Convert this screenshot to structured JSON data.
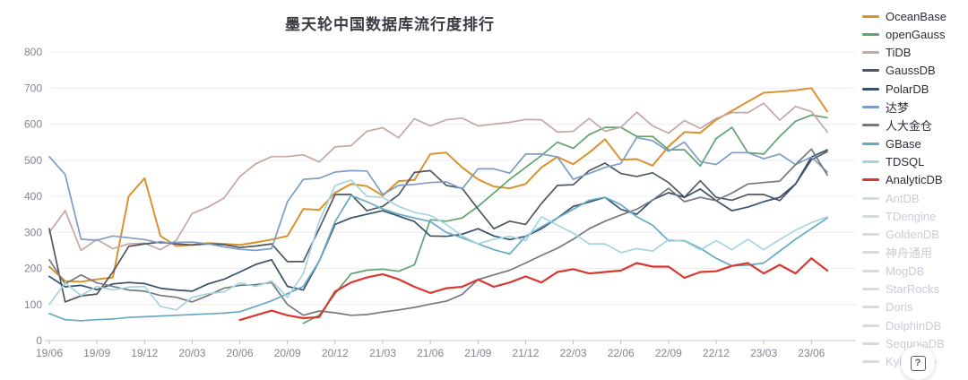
{
  "title": "墨天轮中国数据库流行度排行",
  "help_button": {
    "glyph": "?"
  },
  "palette": {
    "grid": "#e9eef6",
    "axis_line": "#c7cbd2",
    "tick_mark": "#b9bdc4",
    "tick_text": "#858591",
    "title_text": "#3a3a42",
    "inactive_swatch": "#d6dade",
    "inactive_text": "#c9cdd4"
  },
  "chart_data": {
    "type": "line",
    "title": "墨天轮中国数据库流行度排行",
    "xlabel": "",
    "ylabel": "",
    "ylim": [
      0,
      800
    ],
    "y_ticks": [
      0,
      100,
      200,
      300,
      400,
      500,
      600,
      700,
      800
    ],
    "grid": true,
    "legend_position": "right",
    "x": [
      "19/06",
      "19/07",
      "19/08",
      "19/09",
      "19/10",
      "19/11",
      "19/12",
      "20/01",
      "20/02",
      "20/03",
      "20/04",
      "20/05",
      "20/06",
      "20/07",
      "20/08",
      "20/09",
      "20/10",
      "20/11",
      "20/12",
      "21/01",
      "21/02",
      "21/03",
      "21/04",
      "21/05",
      "21/06",
      "21/07",
      "21/08",
      "21/09",
      "21/10",
      "21/11",
      "21/12",
      "22/01",
      "22/02",
      "22/03",
      "22/04",
      "22/05",
      "22/06",
      "22/07",
      "22/08",
      "22/09",
      "22/10",
      "22/11",
      "22/12",
      "23/01",
      "23/02",
      "23/03",
      "23/04",
      "23/05",
      "23/06",
      "23/07"
    ],
    "x_tick_labels": [
      "19/06",
      "19/09",
      "19/12",
      "20/03",
      "20/06",
      "20/09",
      "20/12",
      "21/03",
      "21/06",
      "21/09",
      "21/12",
      "22/03",
      "22/06",
      "22/09",
      "22/12",
      "23/03",
      "23/06"
    ],
    "series": [
      {
        "name": "OceanBase",
        "color": "#d9922e",
        "values": [
          205,
          165,
          163,
          170,
          175,
          400,
          450,
          290,
          262,
          265,
          270,
          268,
          265,
          272,
          280,
          290,
          365,
          362,
          410,
          434,
          428,
          402,
          442,
          445,
          517,
          521,
          480,
          447,
          427,
          422,
          434,
          480,
          509,
          489,
          521,
          558,
          501,
          503,
          485,
          538,
          578,
          576,
          612,
          637,
          662,
          687,
          690,
          694,
          700,
          635
        ]
      },
      {
        "name": "openGauss",
        "color": "#5fa36f",
        "values": [
          null,
          null,
          null,
          null,
          null,
          null,
          null,
          null,
          null,
          null,
          null,
          null,
          null,
          null,
          null,
          null,
          48,
          70,
          130,
          185,
          195,
          198,
          192,
          210,
          335,
          331,
          340,
          372,
          409,
          447,
          480,
          513,
          550,
          533,
          571,
          591,
          591,
          566,
          566,
          529,
          529,
          484,
          560,
          591,
          521,
          517,
          566,
          608,
          625,
          618
        ]
      },
      {
        "name": "TiDB",
        "color": "#c7a7a1",
        "values": [
          300,
          360,
          250,
          280,
          255,
          268,
          270,
          252,
          278,
          352,
          370,
          395,
          455,
          490,
          510,
          510,
          515,
          495,
          537,
          540,
          580,
          590,
          562,
          615,
          595,
          612,
          617,
          595,
          600,
          605,
          613,
          612,
          578,
          580,
          616,
          580,
          591,
          633,
          595,
          575,
          610,
          588,
          616,
          632,
          632,
          658,
          611,
          649,
          635,
          578
        ]
      },
      {
        "name": "GaussDB",
        "color": "#50575e",
        "values": [
          310,
          107,
          124,
          129,
          190,
          261,
          268,
          273,
          268,
          265,
          268,
          266,
          258,
          262,
          268,
          219,
          219,
          310,
          405,
          405,
          360,
          372,
          404,
          466,
          471,
          430,
          422,
          365,
          310,
          331,
          322,
          380,
          430,
          432,
          471,
          492,
          463,
          455,
          465,
          438,
          397,
          443,
          397,
          389,
          405,
          405,
          388,
          434,
          501,
          524
        ]
      },
      {
        "name": "PolarDB",
        "color": "#37506c",
        "values": [
          178,
          149,
          153,
          141,
          157,
          161,
          158,
          145,
          140,
          137,
          157,
          170,
          190,
          211,
          224,
          150,
          140,
          220,
          322,
          340,
          350,
          360,
          345,
          330,
          290,
          289,
          295,
          310,
          290,
          280,
          289,
          310,
          340,
          372,
          384,
          397,
          364,
          350,
          390,
          410,
          397,
          420,
          388,
          360,
          370,
          385,
          397,
          434,
          509,
          529
        ]
      },
      {
        "name": "达梦",
        "color": "#7e9cc7",
        "values": [
          510,
          460,
          281,
          278,
          290,
          285,
          280,
          270,
          272,
          273,
          268,
          260,
          253,
          250,
          255,
          385,
          447,
          450,
          467,
          471,
          470,
          405,
          430,
          433,
          438,
          440,
          420,
          476,
          476,
          464,
          517,
          517,
          509,
          447,
          463,
          480,
          491,
          563,
          554,
          525,
          550,
          496,
          488,
          521,
          521,
          504,
          517,
          488,
          509,
          467
        ]
      },
      {
        "name": "人大金仓",
        "color": "#75787d",
        "values": [
          224,
          157,
          182,
          160,
          150,
          140,
          137,
          125,
          120,
          107,
          125,
          145,
          153,
          155,
          161,
          100,
          70,
          82,
          77,
          70,
          72,
          79,
          85,
          92,
          101,
          109,
          128,
          169,
          182,
          195,
          215,
          236,
          256,
          281,
          310,
          331,
          348,
          364,
          389,
          422,
          385,
          397,
          388,
          409,
          434,
          438,
          442,
          488,
          531,
          459
        ]
      },
      {
        "name": "GBase",
        "color": "#65aac5",
        "values": [
          75,
          58,
          55,
          58,
          60,
          64,
          66,
          68,
          70,
          72,
          74,
          76,
          80,
          95,
          110,
          130,
          150,
          220,
          330,
          402,
          385,
          365,
          350,
          340,
          330,
          300,
          285,
          268,
          252,
          240,
          289,
          315,
          340,
          364,
          389,
          397,
          377,
          343,
          320,
          277,
          277,
          256,
          228,
          207,
          209,
          215,
          248,
          281,
          310,
          340
        ]
      },
      {
        "name": "TDSQL",
        "color": "#a6d4de",
        "values": [
          100,
          160,
          125,
          150,
          140,
          148,
          150,
          95,
          85,
          120,
          130,
          135,
          160,
          150,
          165,
          120,
          185,
          330,
          430,
          445,
          400,
          397,
          372,
          355,
          347,
          322,
          290,
          268,
          281,
          289,
          277,
          343,
          320,
          298,
          268,
          268,
          244,
          255,
          248,
          280,
          275,
          252,
          277,
          252,
          281,
          252,
          280,
          306,
          327,
          343
        ]
      },
      {
        "name": "AnalyticDB",
        "color": "#d8382f",
        "values": [
          null,
          null,
          null,
          null,
          null,
          null,
          null,
          null,
          null,
          null,
          null,
          null,
          57,
          70,
          83,
          70,
          62,
          65,
          136,
          161,
          175,
          184,
          170,
          149,
          132,
          145,
          149,
          169,
          149,
          161,
          178,
          161,
          190,
          198,
          186,
          190,
          194,
          215,
          205,
          205,
          174,
          190,
          192,
          207,
          215,
          186,
          210,
          186,
          228,
          194
        ]
      }
    ],
    "inactive_series": [
      "AntDB",
      "TDengine",
      "GoldenDB",
      "神舟通用",
      "MogDB",
      "StarRocks",
      "Doris",
      "DolphinDB",
      "SequoiaDB",
      "Kyligence"
    ]
  }
}
